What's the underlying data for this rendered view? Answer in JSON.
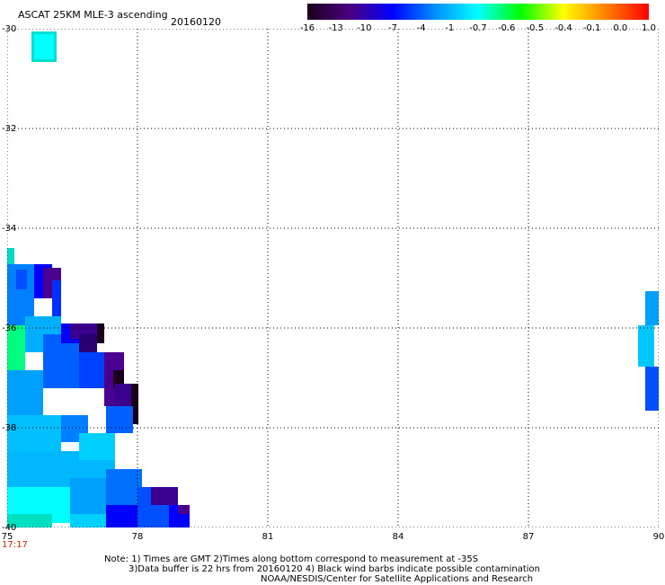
{
  "header": {
    "title": "ASCAT 25KM MLE-3 ascending",
    "date": "20160120"
  },
  "colorbar": {
    "labels": [
      "-16",
      "-13",
      "-10",
      "-7",
      "-4",
      "-1",
      "-0.7",
      "-0.6",
      "-0.5",
      "-0.4",
      "-0.1",
      "0.0",
      "1.0"
    ],
    "colors": [
      "#1a001a",
      "#4a0080",
      "#0000ff",
      "#0090ff",
      "#00ffff",
      "#00ff00",
      "#ffff00",
      "#ff8000",
      "#ff0000"
    ]
  },
  "map": {
    "x_ticks": [
      "75",
      "78",
      "81",
      "84",
      "87",
      "90"
    ],
    "y_ticks": [
      "-30",
      "-32",
      "-34",
      "-36",
      "-38",
      "-40"
    ],
    "time_label": "17:17",
    "lon_range": [
      75,
      90
    ],
    "lat_range": [
      -40,
      -30
    ]
  },
  "footer": {
    "line1": "Note: 1) Times are GMT 2)Times along bottom correspond to measurement at -35S",
    "line2": "3)Data buffer is 22 hrs from 20160120 4) Black wind barbs indicate possible contamination",
    "line3": "NOAA/NESDIS/Center for Satellite Applications and Research"
  }
}
